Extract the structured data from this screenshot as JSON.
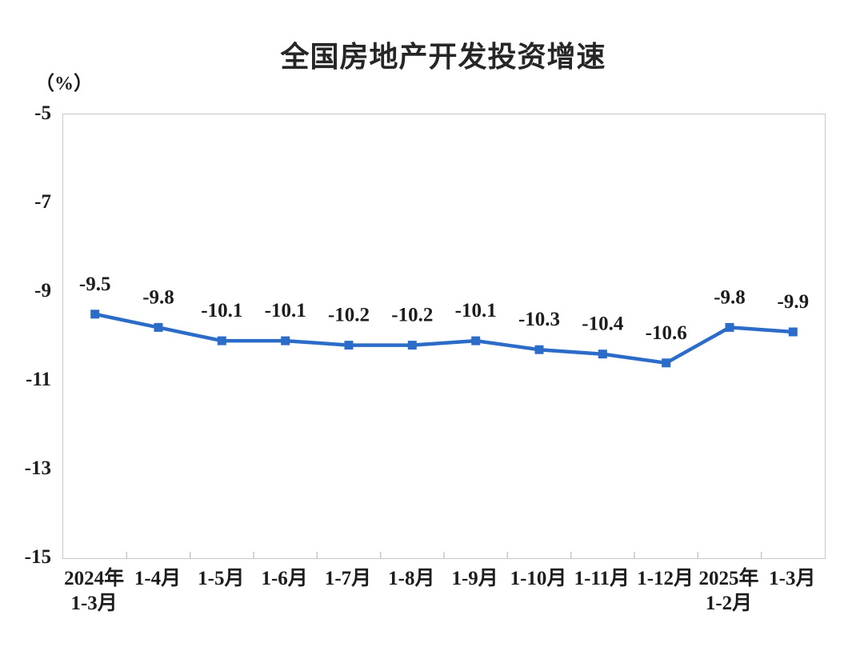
{
  "page": {
    "title": "全国房地产开发投资增速",
    "unit_label": "（%）"
  },
  "chart_data": {
    "type": "line",
    "title": "全国房地产开发投资增速",
    "ylabel": "（%）",
    "categories": [
      "2024年\n1-3月",
      "1-4月",
      "1-5月",
      "1-6月",
      "1-7月",
      "1-8月",
      "1-9月",
      "1-10月",
      "1-11月",
      "1-12月",
      "2025年\n1-2月",
      "1-3月"
    ],
    "values": [
      -9.5,
      -9.8,
      -10.1,
      -10.1,
      -10.2,
      -10.2,
      -10.1,
      -10.3,
      -10.4,
      -10.6,
      -9.8,
      -9.9
    ],
    "data_labels": [
      "-9.5",
      "-9.8",
      "-10.1",
      "-10.1",
      "-10.2",
      "-10.2",
      "-10.1",
      "-10.3",
      "-10.4",
      "-10.6",
      "-9.8",
      "-9.9"
    ],
    "yticks": [
      -5,
      -7,
      -9,
      -11,
      -13,
      -15
    ],
    "ylim": [
      -15,
      -5
    ],
    "grid": false,
    "legend": "none",
    "marker": "square",
    "colors": {
      "line": "#2b6cc8",
      "marker": "#2b6cc8",
      "axis": "#c9c9c9",
      "text": "#1d1d1d",
      "title": "#262626"
    }
  }
}
